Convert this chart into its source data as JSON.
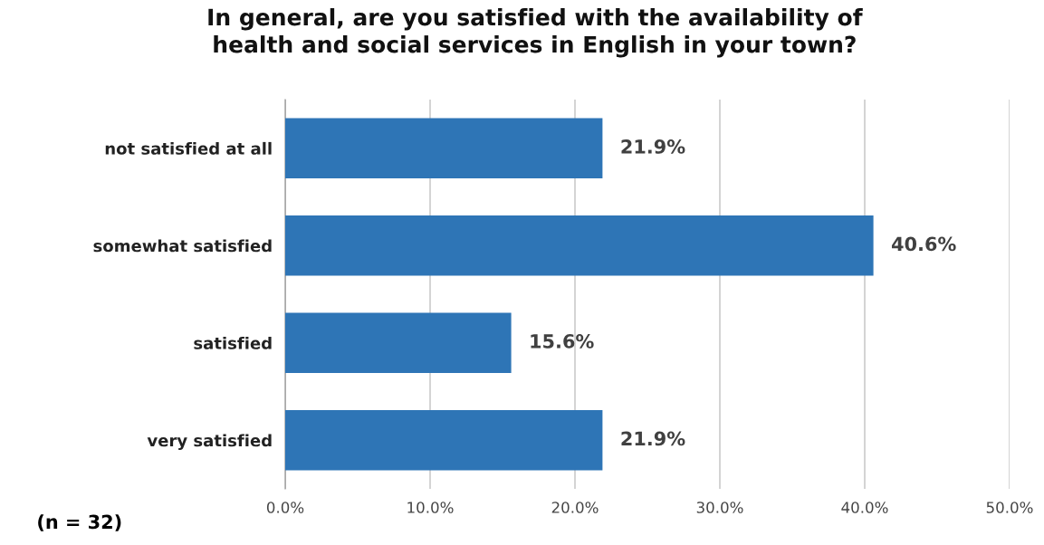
{
  "chart_data": {
    "type": "bar",
    "orientation": "horizontal",
    "title": "In general, are you satisfied with the availability of\nhealth and social services in English in your town?",
    "categories": [
      "not satisfied at all",
      "somewhat satisfied",
      "satisfied",
      "very satisfied"
    ],
    "values": [
      21.9,
      40.6,
      15.6,
      21.9
    ],
    "value_labels": [
      "21.9%",
      "40.6%",
      "15.6%",
      "21.9%"
    ],
    "color": "#2e75b6",
    "xlim": [
      0,
      50
    ],
    "xticks": [
      {
        "value": 0,
        "label": "0.0%"
      },
      {
        "value": 10,
        "label": "10.0%"
      },
      {
        "value": 20,
        "label": "20.0%"
      },
      {
        "value": 30,
        "label": "30.0%"
      },
      {
        "value": 40,
        "label": "40.0%"
      },
      {
        "value": 50,
        "label": "50.0%"
      }
    ],
    "grid": "x",
    "annotations": [
      "(n = 32)"
    ]
  }
}
